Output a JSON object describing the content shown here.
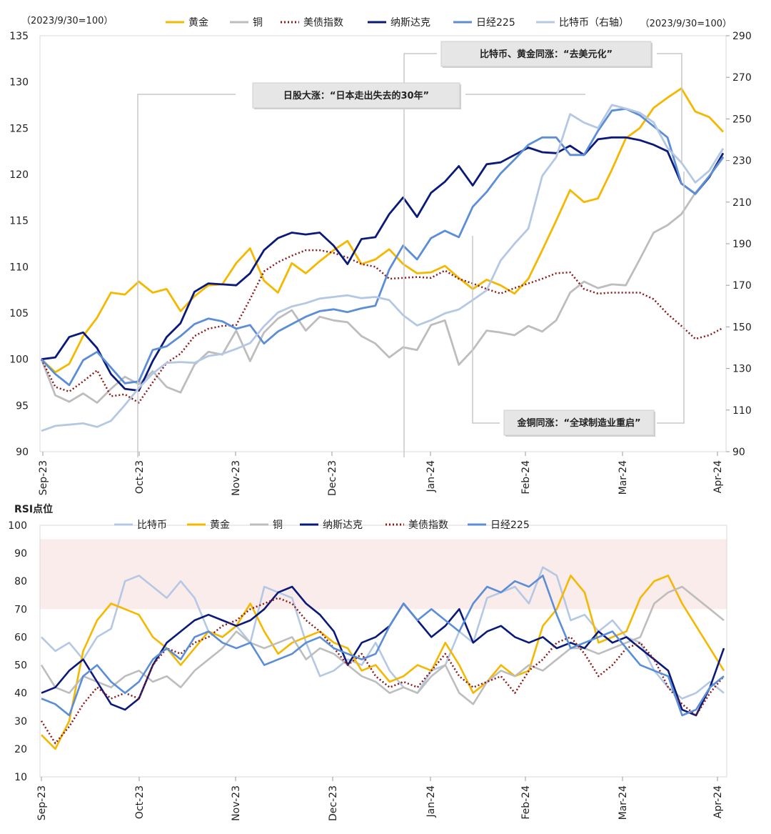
{
  "chart_data": [
    {
      "type": "line",
      "title": "",
      "left_axis_unit": "（2023/9/30=100）",
      "right_axis_unit": "（2023/9/30=100）",
      "ylim_left": [
        90,
        135
      ],
      "yticks_left": [
        90,
        95,
        100,
        105,
        110,
        115,
        120,
        125,
        130,
        135
      ],
      "ylim_right": [
        90,
        290
      ],
      "yticks_right": [
        90,
        110,
        130,
        150,
        170,
        190,
        210,
        230,
        250,
        270,
        290
      ],
      "x_tick_labels": [
        "Sep-23",
        "Oct-23",
        "Nov-23",
        "Dec-23",
        "Jan-24",
        "Feb-24",
        "Mar-24",
        "Apr-24"
      ],
      "legend": [
        "黄金",
        "铜",
        "美债指数",
        "纳斯达克",
        "日经225",
        "比特币（右轴）"
      ],
      "annotations": [
        "比特币、黄金同涨：“去美元化”",
        "日股大涨：“日本走出失去的30年”",
        "金铜同涨：“全球制造业重启”"
      ],
      "series": [
        {
          "name": "黄金",
          "axis": "left",
          "color": "#F5B800",
          "dash": "solid",
          "values": [
            100,
            98.6,
            99.5,
            102.5,
            104.5,
            107.2,
            107.0,
            108.4,
            107.2,
            107.6,
            105.2,
            106.8,
            108.0,
            108.1,
            110.4,
            112.0,
            108.5,
            107.2,
            110.4,
            109.3,
            110.6,
            111.8,
            112.8,
            110.3,
            110.8,
            111.9,
            110.3,
            109.3,
            109.4,
            110.1,
            108.8,
            107.6,
            108.6,
            108.0,
            107.1,
            108.7,
            111.8,
            115.0,
            118.3,
            117.0,
            117.4,
            120.5,
            123.9,
            125.0,
            127.2,
            128.3,
            129.3,
            126.8,
            126.2,
            124.6
          ]
        },
        {
          "name": "铜",
          "axis": "left",
          "color": "#BDBDBD",
          "dash": "solid",
          "values": [
            100,
            96.1,
            95.4,
            96.3,
            95.3,
            96.8,
            98.1,
            97.3,
            98.7,
            97.0,
            96.4,
            99.4,
            100.8,
            100.5,
            103.1,
            99.8,
            102.9,
            104.4,
            105.3,
            103.1,
            104.6,
            104.2,
            104.0,
            102.5,
            101.7,
            100.2,
            101.3,
            101.0,
            103.7,
            104.2,
            99.4,
            101.0,
            103.1,
            102.9,
            102.6,
            103.6,
            103.0,
            104.2,
            107.2,
            108.4,
            107.7,
            108.1,
            108.0,
            110.8,
            113.7,
            114.5,
            115.7,
            118.0,
            119.8,
            121.8
          ]
        },
        {
          "name": "美债指数",
          "axis": "left",
          "color": "#8B1A1A",
          "dash": "dotted",
          "values": [
            100,
            97.0,
            96.5,
            97.6,
            98.8,
            96.0,
            96.2,
            95.3,
            97.5,
            99.6,
            100.6,
            102.5,
            103.3,
            103.6,
            103.7,
            106.5,
            109.5,
            110.5,
            111.2,
            111.8,
            111.8,
            111.5,
            111.0,
            110.3,
            110.0,
            108.7,
            108.8,
            108.9,
            108.8,
            109.6,
            108.7,
            108.2,
            107.6,
            107.1,
            107.7,
            108.2,
            108.7,
            109.3,
            109.4,
            107.6,
            107.1,
            107.2,
            107.2,
            107.2,
            106.5,
            104.9,
            103.6,
            102.2,
            102.6,
            103.4
          ]
        },
        {
          "name": "纳斯达克",
          "axis": "left",
          "color": "#0A1A7A",
          "dash": "solid",
          "values": [
            100,
            100.2,
            102.4,
            102.9,
            101.2,
            98.4,
            96.8,
            96.6,
            99.8,
            102.4,
            103.9,
            107.3,
            108.2,
            108.1,
            108.0,
            109.3,
            111.8,
            113.1,
            113.7,
            113.5,
            113.7,
            112.3,
            110.3,
            113.0,
            113.2,
            115.7,
            117.5,
            115.4,
            118.0,
            119.2,
            120.9,
            118.8,
            121.1,
            121.3,
            122.1,
            122.9,
            122.4,
            122.3,
            123.1,
            122.1,
            123.8,
            124.0,
            124.0,
            123.7,
            123.2,
            122.5,
            119.0,
            117.9,
            119.7,
            122.3
          ]
        },
        {
          "name": "日经225",
          "axis": "left",
          "color": "#5B8ED6",
          "dash": "solid",
          "values": [
            100,
            98.4,
            97.2,
            99.9,
            100.8,
            99.1,
            97.4,
            97.6,
            101.0,
            101.4,
            102.5,
            103.8,
            104.4,
            104.1,
            103.3,
            103.7,
            101.7,
            103.0,
            103.8,
            104.6,
            105.2,
            105.4,
            105.1,
            105.5,
            105.8,
            109.7,
            112.3,
            110.8,
            113.1,
            113.9,
            113.2,
            116.5,
            118.1,
            120.1,
            121.6,
            123.2,
            124.0,
            124.0,
            122.1,
            122.1,
            124.7,
            126.9,
            127.1,
            126.4,
            125.2,
            124.0,
            119.0,
            117.9,
            119.8,
            121.9
          ]
        },
        {
          "name": "比特币（右轴）",
          "axis": "right",
          "color": "#B4C8E4",
          "dash": "solid",
          "values": [
            100,
            102.4,
            103.0,
            103.6,
            101.9,
            104.8,
            112.4,
            120.6,
            127.6,
            132.7,
            133.1,
            132.7,
            136.0,
            137.0,
            139.4,
            142.2,
            150.3,
            156.9,
            159.8,
            161.4,
            163.6,
            164.4,
            165.2,
            163.8,
            164.4,
            162.9,
            155.6,
            150.7,
            153.2,
            156.5,
            158.4,
            162.9,
            167.6,
            181.9,
            190.0,
            197.3,
            222.6,
            231.6,
            252.3,
            248.2,
            245.6,
            256.7,
            255.0,
            253.0,
            248.3,
            236.0,
            229.0,
            219.4,
            225.1,
            235.8
          ]
        }
      ]
    },
    {
      "type": "line",
      "title": "",
      "ylabel": "RSI点位",
      "ylim": [
        10,
        100
      ],
      "yticks": [
        10,
        20,
        30,
        40,
        50,
        60,
        70,
        80,
        90,
        100
      ],
      "shaded_band": [
        70,
        95
      ],
      "x_tick_labels": [
        "Sep-23",
        "Oct-23",
        "Nov-23",
        "Dec-23",
        "Jan-24",
        "Feb-24",
        "Mar-24",
        "Apr-24"
      ],
      "legend": [
        "比特币",
        "黄金",
        "铜",
        "纳斯达克",
        "美债指数",
        "日经225"
      ],
      "series": [
        {
          "name": "比特币",
          "color": "#B4C8E4",
          "dash": "solid",
          "values": [
            60,
            55,
            58,
            52,
            60,
            63,
            80,
            82,
            78,
            74,
            80,
            74,
            62,
            60,
            64,
            58,
            78,
            76,
            74,
            58,
            46,
            48,
            52,
            50,
            58,
            48,
            42,
            40,
            48,
            50,
            62,
            58,
            74,
            76,
            78,
            72,
            85,
            82,
            66,
            68,
            62,
            66,
            60,
            58,
            48,
            42,
            38,
            40,
            44,
            40
          ]
        },
        {
          "name": "黄金",
          "color": "#F5B800",
          "dash": "solid",
          "values": [
            25,
            20,
            30,
            55,
            66,
            72,
            70,
            68,
            60,
            56,
            50,
            56,
            62,
            60,
            64,
            72,
            62,
            54,
            58,
            60,
            62,
            58,
            56,
            48,
            50,
            44,
            46,
            50,
            48,
            58,
            50,
            40,
            44,
            50,
            46,
            48,
            64,
            70,
            82,
            76,
            58,
            60,
            62,
            74,
            80,
            82,
            72,
            64,
            56,
            48
          ]
        },
        {
          "name": "铜",
          "color": "#BDBDBD",
          "dash": "solid",
          "values": [
            50,
            42,
            40,
            46,
            44,
            42,
            46,
            48,
            44,
            46,
            42,
            48,
            52,
            56,
            62,
            58,
            56,
            58,
            60,
            52,
            56,
            54,
            50,
            46,
            44,
            40,
            42,
            40,
            46,
            50,
            40,
            36,
            44,
            48,
            46,
            50,
            48,
            52,
            56,
            56,
            54,
            56,
            58,
            60,
            72,
            76,
            78,
            74,
            70,
            66
          ]
        },
        {
          "name": "纳斯达克",
          "color": "#0A1A7A",
          "dash": "solid",
          "values": [
            40,
            42,
            48,
            52,
            44,
            36,
            34,
            38,
            50,
            58,
            62,
            66,
            68,
            66,
            64,
            66,
            70,
            76,
            78,
            72,
            68,
            62,
            50,
            58,
            60,
            64,
            72,
            66,
            60,
            64,
            70,
            58,
            62,
            64,
            60,
            58,
            60,
            56,
            58,
            56,
            62,
            58,
            60,
            56,
            52,
            48,
            34,
            32,
            42,
            56
          ]
        },
        {
          "name": "美债指数",
          "color": "#8B1A1A",
          "dash": "dotted",
          "values": [
            30,
            22,
            28,
            36,
            42,
            38,
            40,
            38,
            50,
            56,
            54,
            58,
            60,
            64,
            66,
            70,
            72,
            74,
            72,
            66,
            62,
            56,
            50,
            54,
            46,
            42,
            44,
            42,
            48,
            54,
            46,
            42,
            44,
            46,
            40,
            48,
            52,
            58,
            60,
            54,
            46,
            50,
            56,
            58,
            52,
            42,
            36,
            32,
            40,
            46
          ]
        },
        {
          "name": "日经225",
          "color": "#5B8ED6",
          "dash": "solid",
          "values": [
            38,
            36,
            32,
            46,
            50,
            44,
            40,
            44,
            52,
            56,
            52,
            60,
            62,
            58,
            56,
            58,
            50,
            52,
            54,
            58,
            60,
            56,
            54,
            52,
            54,
            64,
            72,
            66,
            70,
            66,
            62,
            72,
            78,
            76,
            80,
            78,
            82,
            68,
            56,
            58,
            60,
            62,
            56,
            50,
            48,
            46,
            32,
            34,
            42,
            46
          ]
        }
      ]
    }
  ]
}
